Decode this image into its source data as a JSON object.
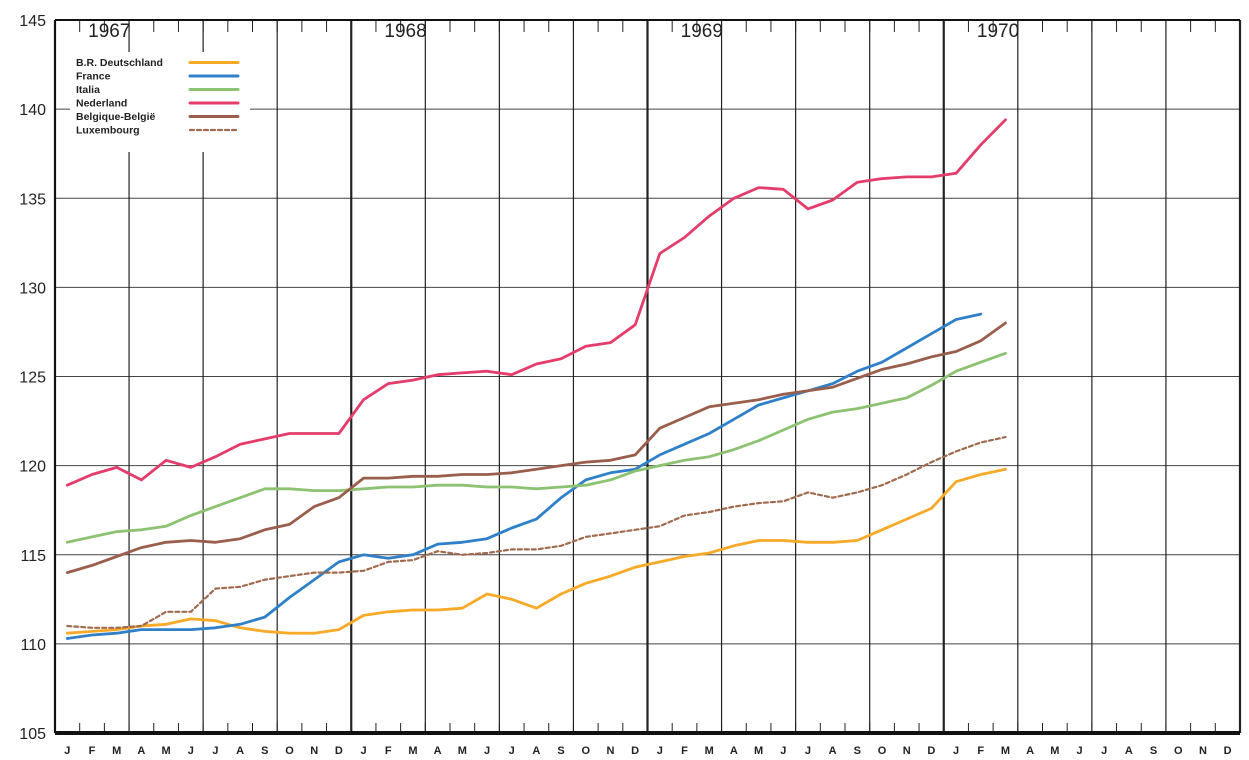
{
  "chart_data": {
    "type": "line",
    "ylim": [
      105,
      145
    ],
    "yticks": [
      105,
      110,
      115,
      120,
      125,
      130,
      135,
      140,
      145
    ],
    "years": [
      "1967",
      "1968",
      "1969",
      "1970"
    ],
    "months": [
      "J",
      "F",
      "M",
      "A",
      "M",
      "J",
      "J",
      "A",
      "S",
      "O",
      "N",
      "D",
      "J",
      "F",
      "M",
      "A",
      "M",
      "J",
      "J",
      "A",
      "S",
      "O",
      "N",
      "D",
      "J",
      "F",
      "M",
      "A",
      "M",
      "J",
      "J",
      "A",
      "S",
      "O",
      "N",
      "D",
      "J",
      "F",
      "M",
      "A",
      "M",
      "J",
      "J",
      "A",
      "S",
      "O",
      "N",
      "D"
    ],
    "grid": true,
    "legend_position": "top-left",
    "series": [
      {
        "name": "B.R. Deutschland",
        "color": "#f7a928",
        "dashed": false,
        "start": 0,
        "values": [
          110.6,
          110.7,
          110.8,
          111.0,
          111.1,
          111.4,
          111.3,
          110.9,
          110.7,
          110.6,
          110.6,
          110.8,
          111.6,
          111.8,
          111.9,
          111.9,
          112.0,
          112.8,
          112.5,
          112.0,
          112.8,
          113.4,
          113.8,
          114.3,
          114.6,
          114.9,
          115.1,
          115.5,
          115.8,
          115.8,
          115.7,
          115.7,
          115.8,
          116.4,
          117.0,
          117.6,
          119.1,
          119.5,
          119.8
        ]
      },
      {
        "name": "France",
        "color": "#2f80c8",
        "dashed": false,
        "start": 0,
        "values": [
          110.3,
          110.5,
          110.6,
          110.8,
          110.8,
          110.8,
          110.9,
          111.1,
          111.5,
          112.6,
          113.6,
          114.6,
          115.0,
          114.8,
          115.0,
          115.6,
          115.7,
          115.9,
          116.5,
          117.0,
          118.2,
          119.2,
          119.6,
          119.8,
          120.6,
          121.2,
          121.8,
          122.6,
          123.4,
          123.8,
          124.2,
          124.6,
          125.3,
          125.8,
          126.6,
          127.4,
          128.2,
          128.5
        ]
      },
      {
        "name": "Italia",
        "color": "#8cc271",
        "dashed": false,
        "start": 0,
        "values": [
          115.7,
          116.0,
          116.3,
          116.4,
          116.6,
          117.2,
          117.7,
          118.2,
          118.7,
          118.7,
          118.6,
          118.6,
          118.7,
          118.8,
          118.8,
          118.9,
          118.9,
          118.8,
          118.8,
          118.7,
          118.8,
          118.9,
          119.2,
          119.7,
          120.0,
          120.3,
          120.5,
          120.9,
          121.4,
          122.0,
          122.6,
          123.0,
          123.2,
          123.5,
          123.8,
          124.5,
          125.3,
          125.8,
          126.3
        ]
      },
      {
        "name": "Nederland",
        "color": "#e43c6b",
        "dashed": false,
        "start": 0,
        "values": [
          118.9,
          119.5,
          119.9,
          119.2,
          120.3,
          119.9,
          120.5,
          121.2,
          121.5,
          121.8,
          121.8,
          121.8,
          123.7,
          124.6,
          124.8,
          125.1,
          125.2,
          125.3,
          125.1,
          125.7,
          126.0,
          126.7,
          126.9,
          127.9,
          131.9,
          132.8,
          134.0,
          135.0,
          135.6,
          135.5,
          134.4,
          134.9,
          135.9,
          136.1,
          136.2,
          136.2,
          136.4,
          138.0,
          139.4
        ]
      },
      {
        "name": "Belgique-België",
        "color": "#9a5e4c",
        "dashed": false,
        "start": 0,
        "values": [
          114.0,
          114.4,
          114.9,
          115.4,
          115.7,
          115.8,
          115.7,
          115.9,
          116.4,
          116.7,
          117.7,
          118.2,
          119.3,
          119.3,
          119.4,
          119.4,
          119.5,
          119.5,
          119.6,
          119.8,
          120.0,
          120.2,
          120.3,
          120.6,
          122.1,
          122.7,
          123.3,
          123.5,
          123.7,
          124.0,
          124.2,
          124.4,
          124.9,
          125.4,
          125.7,
          126.1,
          126.4,
          127.0,
          128.0
        ]
      },
      {
        "name": "Luxembourg",
        "color": "#a06a4e",
        "dashed": true,
        "start": 0,
        "values": [
          111.0,
          110.9,
          110.9,
          111.0,
          111.8,
          111.8,
          113.1,
          113.2,
          113.6,
          113.8,
          114.0,
          114.0,
          114.1,
          114.6,
          114.7,
          115.2,
          115.0,
          115.1,
          115.3,
          115.3,
          115.5,
          116.0,
          116.2,
          116.4,
          116.6,
          117.2,
          117.4,
          117.7,
          117.9,
          118.0,
          118.5,
          118.2,
          118.5,
          118.9,
          119.5,
          120.2,
          120.8,
          121.3,
          121.6
        ]
      }
    ]
  }
}
